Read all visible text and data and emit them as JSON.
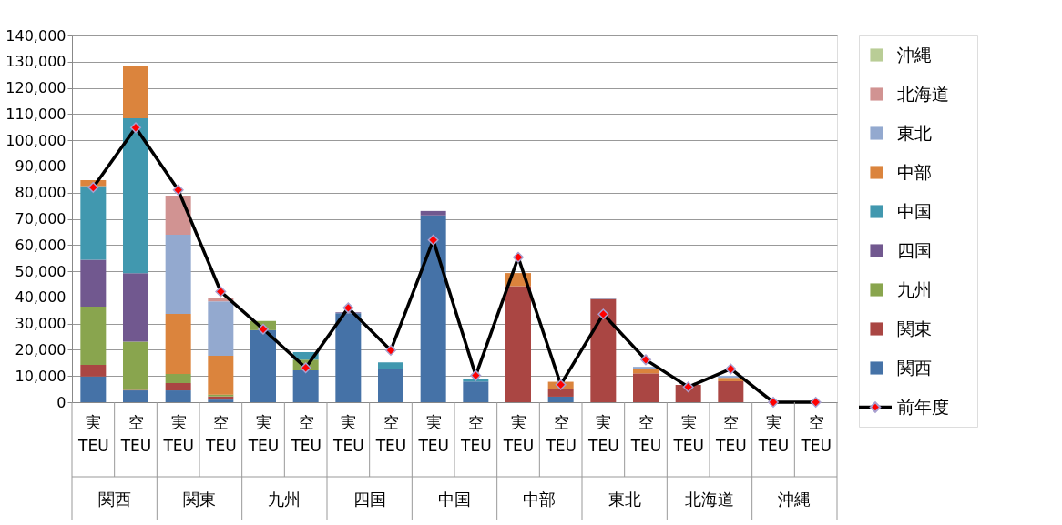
{
  "chart_data": {
    "type": "bar",
    "stacked": true,
    "categories": [
      "実\nTEU",
      "空\nTEU",
      "実\nTEU",
      "空\nTEU",
      "実\nTEU",
      "空\nTEU",
      "実\nTEU",
      "空\nTEU",
      "実\nTEU",
      "空\nTEU",
      "実\nTEU",
      "空\nTEU",
      "実\nTEU",
      "空\nTEU",
      "実\nTEU",
      "空\nTEU",
      "実\nTEU",
      "空\nTEU"
    ],
    "annotations": [
      "関西",
      "関東",
      "九州",
      "四国",
      "中国",
      "中部",
      "東北",
      "北海道",
      "沖縄"
    ],
    "ylim": [
      0,
      140000
    ],
    "yticks": [
      0,
      {
        "value": 10000,
        "label": "10,000"
      },
      {
        "value": 20000,
        "label": "20,000"
      },
      {
        "value": 30000,
        "label": "30,000"
      },
      {
        "value": 40000,
        "label": "40,000"
      },
      {
        "value": 50000,
        "label": "50,000"
      },
      {
        "value": 60000,
        "label": "60,000"
      },
      {
        "value": 70000,
        "label": "70,000"
      },
      {
        "value": 80000,
        "label": "80,000"
      },
      {
        "value": 90000,
        "label": "90,000"
      },
      {
        "value": 100000,
        "label": "100,000"
      },
      {
        "value": 110000,
        "label": "110,000"
      },
      {
        "value": 120000,
        "label": "120,000"
      },
      {
        "value": 130000,
        "label": "130,000"
      },
      {
        "value": 140000,
        "label": "140,000"
      }
    ],
    "grid": "y",
    "legend": "right",
    "series": [
      {
        "name": "関西",
        "color": "#4572a7",
        "values": [
          9800,
          4500,
          4500,
          1000,
          27500,
          12200,
          34000,
          12500,
          71300,
          7900,
          0,
          2100,
          0,
          0,
          0,
          0,
          0,
          0
        ]
      },
      {
        "name": "関東",
        "color": "#aa4643",
        "values": [
          4400,
          200,
          2800,
          1200,
          0,
          0,
          0,
          0,
          0,
          0,
          44300,
          3100,
          39400,
          11000,
          6600,
          8000,
          0,
          0
        ]
      },
      {
        "name": "九州",
        "color": "#89a54e",
        "values": [
          22300,
          18400,
          3500,
          700,
          3500,
          4000,
          0,
          0,
          0,
          0,
          0,
          0,
          0,
          0,
          0,
          0,
          0,
          0
        ]
      },
      {
        "name": "四国",
        "color": "#71588f",
        "values": [
          17900,
          26100,
          0,
          0,
          0,
          0,
          300,
          0,
          1700,
          0,
          0,
          0,
          0,
          0,
          0,
          0,
          0,
          0
        ]
      },
      {
        "name": "中国",
        "color": "#4198af",
        "values": [
          28100,
          59200,
          0,
          0,
          0,
          2900,
          0,
          2700,
          0,
          1100,
          0,
          0,
          0,
          0,
          0,
          0,
          0,
          0
        ]
      },
      {
        "name": "中部",
        "color": "#db843d",
        "values": [
          2300,
          20100,
          22900,
          14800,
          0,
          0,
          0,
          null,
          0,
          0,
          5000,
          2600,
          0,
          1700,
          0,
          1300,
          0,
          0
        ]
      },
      {
        "name": "東北",
        "color": "#93a9cf",
        "values": [
          0,
          0,
          30200,
          20800,
          0,
          0,
          0,
          0,
          0,
          0,
          0,
          0,
          500,
          800,
          0,
          800,
          0,
          0
        ]
      },
      {
        "name": "北海道",
        "color": "#d19392",
        "values": [
          0,
          0,
          15000,
          1400,
          0,
          0,
          0,
          0,
          0,
          0,
          0,
          0,
          0,
          0,
          0,
          0,
          0,
          0
        ]
      },
      {
        "name": "沖縄",
        "color": "#b9cd96",
        "values": [
          0,
          0,
          0,
          0,
          0,
          0,
          0,
          0,
          0,
          0,
          0,
          0,
          0,
          0,
          0,
          0,
          0,
          0
        ]
      },
      {
        "name": "前年度",
        "type": "line",
        "color": "#000000",
        "marker": "diamond",
        "values": [
          82000,
          104800,
          81000,
          42200,
          27900,
          13100,
          36000,
          19800,
          61900,
          10200,
          55300,
          6700,
          33600,
          16200,
          5800,
          12700,
          0,
          0
        ]
      }
    ]
  }
}
